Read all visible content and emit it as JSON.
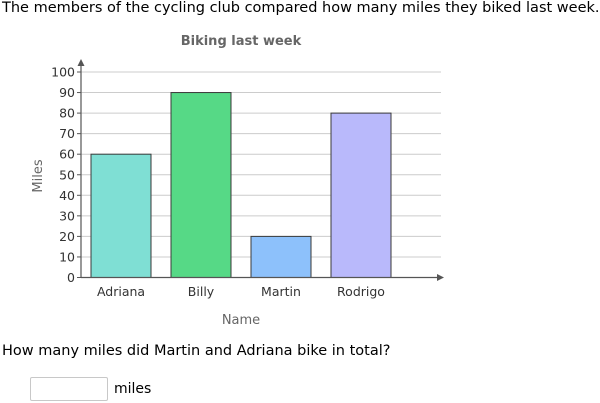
{
  "prompt": "The members of the cycling club compared how many miles they biked last week.",
  "question": "How many miles did Martin and Adriana bike in total?",
  "answer": {
    "value": "",
    "unit": "miles"
  },
  "chart_data": {
    "type": "bar",
    "title": "Biking last week",
    "xlabel": "Name",
    "ylabel": "Miles",
    "categories": [
      "Adriana",
      "Billy",
      "Martin",
      "Rodrigo"
    ],
    "values": [
      60,
      90,
      20,
      80
    ],
    "colors": [
      "#7fdfd4",
      "#56d986",
      "#8dc1fb",
      "#b9b9fb"
    ],
    "ylim": [
      0,
      100
    ],
    "yticks": [
      0,
      10,
      20,
      30,
      40,
      50,
      60,
      70,
      80,
      90,
      100
    ],
    "grid": true
  }
}
